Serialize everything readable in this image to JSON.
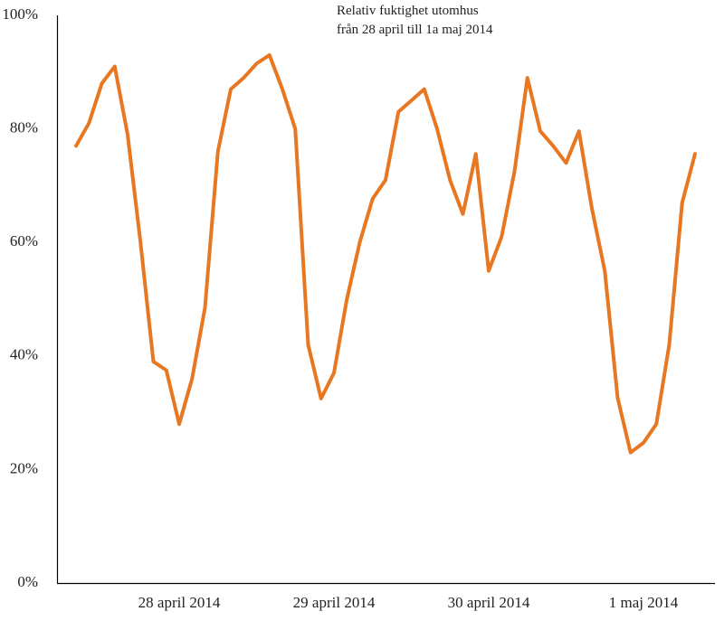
{
  "chart_data": {
    "type": "line",
    "title": "Relativ fuktighet utomhus",
    "subtitle": "från 28 april till 1a maj 2014",
    "color": "#e87722",
    "categories": [
      null,
      null,
      null,
      null,
      null,
      null,
      null,
      null,
      "28 april 2014",
      null,
      null,
      null,
      null,
      null,
      null,
      null,
      null,
      null,
      null,
      null,
      "29 april 2014",
      null,
      null,
      null,
      null,
      null,
      null,
      null,
      null,
      null,
      null,
      null,
      "30 april 2014",
      null,
      null,
      null,
      null,
      null,
      null,
      null,
      null,
      null,
      null,
      null,
      "1 maj 2014",
      null,
      null,
      null,
      null
    ],
    "values": [
      77,
      81,
      88,
      91,
      79,
      60,
      39,
      37.5,
      28,
      36,
      48.5,
      76,
      87,
      89,
      91.5,
      93,
      87,
      80,
      42,
      32.5,
      37,
      50,
      60,
      67.7,
      71,
      83,
      85,
      87,
      80,
      71,
      65,
      75.6,
      55,
      61,
      72.5,
      89,
      79.6,
      77,
      74,
      79.6,
      66,
      55,
      32.6,
      23,
      24.7,
      28,
      42,
      67,
      75.6
    ],
    "ylim": [
      0,
      100
    ],
    "yticks": [
      {
        "value": 0,
        "label": "0%"
      },
      {
        "value": 20,
        "label": "20%"
      },
      {
        "value": 40,
        "label": "40%"
      },
      {
        "value": 60,
        "label": "60%"
      },
      {
        "value": 80,
        "label": "80%"
      },
      {
        "value": 100,
        "label": "100%"
      }
    ],
    "grid": false
  }
}
